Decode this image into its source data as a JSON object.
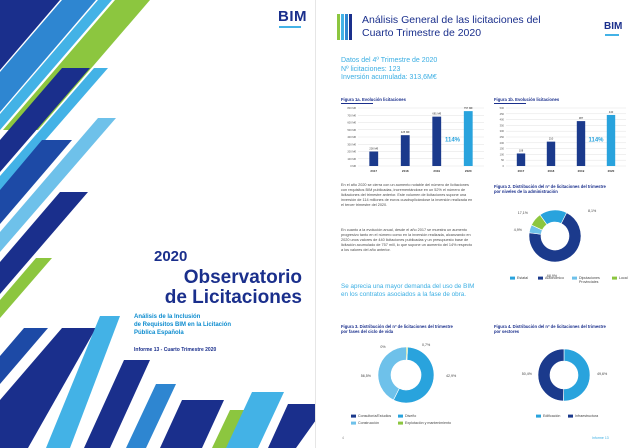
{
  "cover": {
    "logo": "BIM",
    "year": "2020",
    "title_line1": "Observatorio",
    "title_line2": "de Licitaciones",
    "subtitle_line1": "Análisis de la Inclusión",
    "subtitle_line2": "de Requisitos BIM en la Licitación",
    "subtitle_line3": "Pública Española",
    "report": "Informe 13 - Cuarto Trimestre 2020"
  },
  "report_page": {
    "logo": "BIM",
    "title_line1": "Análisis General de las licitaciones del",
    "title_line2": "Cuarto Trimestre de 2020",
    "summary": {
      "line1": "Datos del 4º Trimestre de 2020",
      "line2": "Nº licitaciones: 123",
      "line3": "Inversión acumulada: 313,6M€"
    },
    "paragraph1": "En el año 2020 se cierra con un aumento notable del número de licitaciones con requisitos BIM publicadas, incrementándose en un 52% el número de licitaciones del trimestre anterior. Este volumen de licitaciones supone una inversión de 114 millones de euros cuadruplicándose la inversión realizada en el tercer trimestre del 2020.",
    "paragraph2": "En cuanto a la evolución anual, desde el año 2017 se muestra un aumento progresivo tanto en el número como en la inversión realizada, alcanzando en 2020 unos valores de 440 licitaciones publicadas y un presupuesto base de licitación acumulado de 757 mill, lo que supone un aumento del 14% respecto a los valores del año anterior.",
    "quote": "Se aprecia una mayor demanda del uso de BIM en los contratos asociados a la fase de obra.",
    "footer_left": "4",
    "footer_right": "Informe 13"
  },
  "chart_data": [
    {
      "type": "bar",
      "title": "Figura 1a. Evolución licitaciones",
      "categories": [
        "2017",
        "2018",
        "2019",
        "2020"
      ],
      "values": [
        200,
        425,
        681,
        757
      ],
      "data_labels": [
        "200 M€",
        "425 M€",
        "681 M€",
        "757 M€"
      ],
      "ylabels": [
        "800 M€",
        "700 M€",
        "600 M€",
        "500 M€",
        "400 M€",
        "300 M€",
        "200 M€",
        "100 M€",
        "0 M€"
      ],
      "ylim": [
        0,
        800
      ],
      "annotation": "114%",
      "grid": true
    },
    {
      "type": "bar",
      "title": "Figura 1b. Evolución licitaciones",
      "categories": [
        "2017",
        "2018",
        "2019",
        "2020"
      ],
      "values": [
        108,
        210,
        387,
        440
      ],
      "data_labels": [
        "108",
        "210",
        "387",
        "440"
      ],
      "ylabels": [
        "500",
        "450",
        "400",
        "350",
        "300",
        "250",
        "200",
        "150",
        "100",
        "50",
        "0"
      ],
      "ylim": [
        0,
        500
      ],
      "annotation": "114%",
      "grid": true
    },
    {
      "type": "pie",
      "title_line1": "Figura 2. Distribución del nº de licitaciones del trimestre",
      "title_line2": "por niveles de la administración",
      "labels": [
        "Estatal",
        "Autonómico",
        "Diputaciones Provinciales",
        "Local"
      ],
      "values": [
        17.1,
        68.9,
        4.9,
        8.1
      ],
      "data_labels": [
        "17,1%",
        "68,9%",
        "4,9%",
        "8,1%"
      ],
      "colors": [
        "#29a3dd",
        "#1b3a8c",
        "#6ec1ea",
        "#8cc63f"
      ]
    },
    {
      "type": "pie",
      "title_line1": "Figura 3. Distribución del nº de licitaciones del trimestre",
      "title_line2": "por fases del ciclo de vida",
      "labels": [
        "Consultoría/Estudios",
        "Diseño",
        "Construcción",
        "Explotación y mantenimiento"
      ],
      "values": [
        0,
        56.5,
        42.9,
        0.7
      ],
      "data_labels": [
        "0%",
        "56,5%",
        "42,9%",
        "0,7%"
      ],
      "colors": [
        "#1b3a8c",
        "#29a3dd",
        "#6ec1ea",
        "#8cc63f"
      ]
    },
    {
      "type": "pie",
      "title_line1": "Figura 4. Distribución del nº de licitaciones del trimestre",
      "title_line2": "por sectores",
      "labels": [
        "Edificación",
        "Infraestructura"
      ],
      "values": [
        50.4,
        49.6
      ],
      "data_labels": [
        "50,4%",
        "49,6%"
      ],
      "colors": [
        "#29a3dd",
        "#1b3a8c"
      ]
    }
  ]
}
